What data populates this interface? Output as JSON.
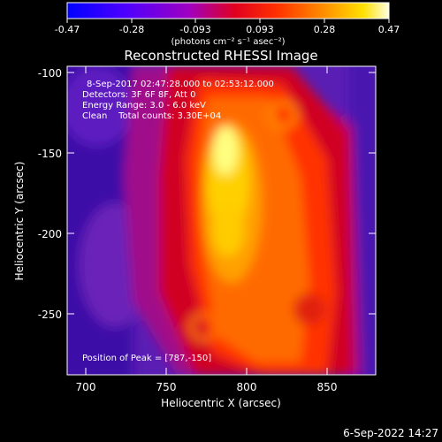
{
  "colorbar": {
    "ticks": [
      "-0.47",
      "-0.28",
      "-0.093",
      "0.093",
      "0.28",
      "0.47"
    ],
    "unit_label": "(photons cm⁻² s⁻¹ asec⁻²)",
    "min": -0.47,
    "max": 0.47
  },
  "chart_data": {
    "type": "heatmap",
    "title": "Reconstructed RHESSI Image",
    "xlabel": "Heliocentric X (arcsec)",
    "ylabel": "Heliocentric Y (arcsec)",
    "xlim": [
      688,
      880
    ],
    "ylim": [
      -288,
      -96
    ],
    "x_ticks": [
      700,
      750,
      800,
      850
    ],
    "y_ticks": [
      -100,
      -150,
      -200,
      -250
    ],
    "peak": [
      787,
      -150
    ],
    "annotations": [
      "8-Sep-2017 02:47:28.000 to 02:53:12.000",
      "Detectors: 3F 6F 8F, Att 0",
      "Energy Range: 3.0 - 6.0 keV",
      "Clean    Total counts: 3.30E+04"
    ],
    "peak_label": "Position of Peak = [787,-150]"
  },
  "footer": {
    "date": "6-Sep-2022 14:27"
  }
}
